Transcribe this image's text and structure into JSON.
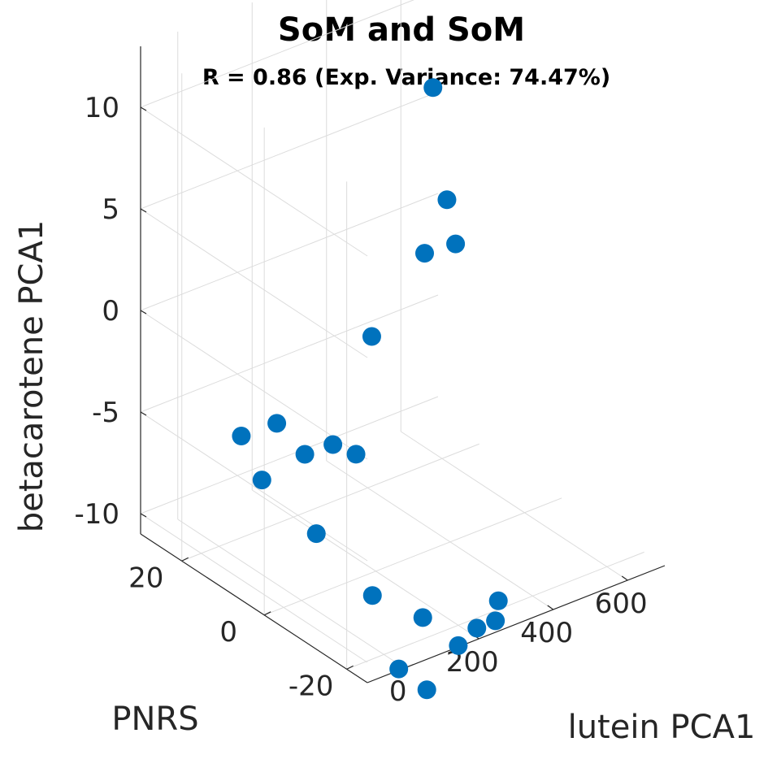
{
  "chart_data": {
    "type": "scatter",
    "projection": "3d",
    "title": "SoM and SoM",
    "subtitle": "R = 0.86 (Exp. Variance: 74.47%)",
    "xlabel": "lutein PCA1",
    "ylabel": "PNRS",
    "zlabel": "betacarotene PCA1",
    "xlim": [
      -100,
      700
    ],
    "ylim": [
      -25,
      30
    ],
    "zlim": [
      -11,
      13
    ],
    "x_ticks": [
      "0",
      "200",
      "400",
      "600"
    ],
    "y_ticks": [
      "-20",
      "0",
      "20"
    ],
    "z_ticks": [
      "-10",
      "-5",
      "0",
      "5",
      "10"
    ],
    "grid": true,
    "marker_color": "#0072BD",
    "points": [
      {
        "x": 680,
        "y": 18,
        "z": 12.0
      },
      {
        "x": 520,
        "y": 15,
        "z": 8.5
      },
      {
        "x": 480,
        "y": 8,
        "z": 4.2
      },
      {
        "x": 470,
        "y": 5,
        "z": 2.5
      },
      {
        "x": 420,
        "y": 8,
        "z": 2.0
      },
      {
        "x": 300,
        "y": 10,
        "z": -1.5
      },
      {
        "x": 100,
        "y": 15,
        "z": -5.0
      },
      {
        "x": 60,
        "y": 20,
        "z": -6.0
      },
      {
        "x": 140,
        "y": 5,
        "z": -5.0
      },
      {
        "x": 120,
        "y": 10,
        "z": -6.0
      },
      {
        "x": 180,
        "y": 3,
        "z": -5.5
      },
      {
        "x": 60,
        "y": 15,
        "z": -7.5
      },
      {
        "x": 40,
        "y": 0,
        "z": -8.0
      },
      {
        "x": 160,
        "y": -15,
        "z": -11.0
      },
      {
        "x": 200,
        "y": -20,
        "z": -12.0
      },
      {
        "x": 40,
        "y": -20,
        "z": -12.0
      },
      {
        "x": 250,
        "y": -20,
        "z": -11.5
      },
      {
        "x": 300,
        "y": -20,
        "z": -11.5
      },
      {
        "x": 330,
        "y": -18,
        "z": -11.0
      },
      {
        "x": 80,
        "y": -10,
        "z": -10.0
      },
      {
        "x": 60,
        "y": -25,
        "z": -12.5
      }
    ]
  }
}
